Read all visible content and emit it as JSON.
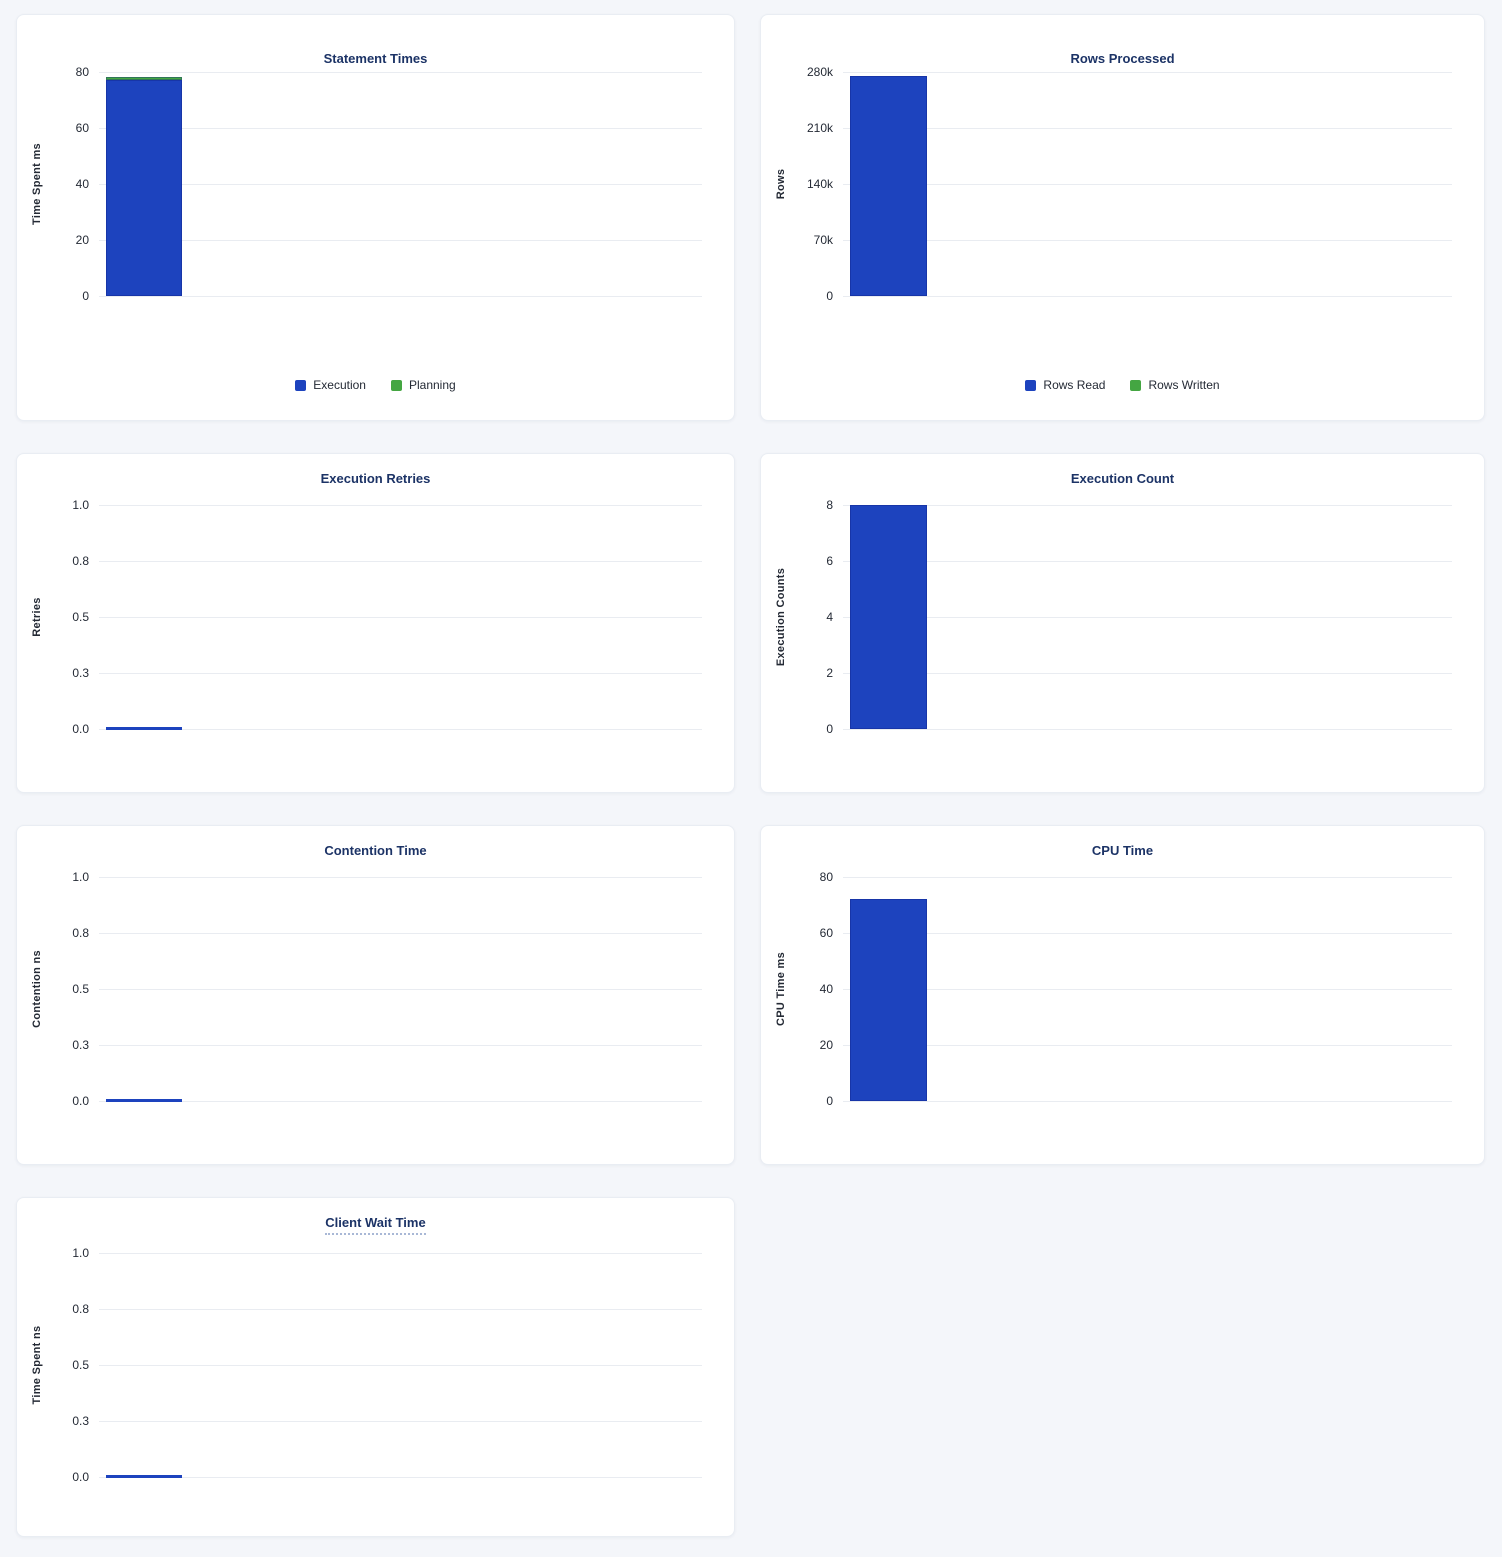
{
  "page": {
    "background_color": "#f4f6fa",
    "panel_background": "#ffffff",
    "panel_border_color": "#e9edf3"
  },
  "palette": {
    "bar_blue": "#1d43be",
    "bar_green": "#44a642",
    "grid_line": "#e9ecf1",
    "title_text": "#1c3366",
    "tick_text": "#242a35"
  },
  "chart_data": [
    {
      "type": "bar",
      "title": "Statement Times",
      "ylabel": "Time Spent ms",
      "ylim": [
        0,
        80
      ],
      "grid": true,
      "stacked": true,
      "legend_position": "bottom",
      "has_tooltip": false,
      "yticks": [
        {
          "value": 80,
          "label": "80"
        },
        {
          "value": 60,
          "label": "60"
        },
        {
          "value": 40,
          "label": "40"
        },
        {
          "value": 20,
          "label": "20"
        },
        {
          "value": 0,
          "label": "0"
        }
      ],
      "series": [
        {
          "name": "Execution",
          "color": "#1d43be",
          "values": [
            77
          ]
        },
        {
          "name": "Planning",
          "color": "#44a642",
          "values": [
            1.2
          ]
        }
      ]
    },
    {
      "type": "bar",
      "title": "Rows Processed",
      "ylabel": "Rows",
      "ylim": [
        0,
        280000
      ],
      "grid": true,
      "stacked": true,
      "legend_position": "bottom",
      "has_tooltip": false,
      "yticks": [
        {
          "value": 280000,
          "label": "280k"
        },
        {
          "value": 210000,
          "label": "210k"
        },
        {
          "value": 140000,
          "label": "140k"
        },
        {
          "value": 70000,
          "label": "70k"
        },
        {
          "value": 0,
          "label": "0"
        }
      ],
      "series": [
        {
          "name": "Rows Read",
          "color": "#1d43be",
          "values": [
            275000
          ]
        },
        {
          "name": "Rows Written",
          "color": "#44a642",
          "values": [
            0
          ]
        }
      ]
    },
    {
      "type": "bar",
      "title": "Execution Retries",
      "ylabel": "Retries",
      "ylim": [
        0,
        1
      ],
      "grid": true,
      "stacked": false,
      "legend_position": "none",
      "has_tooltip": false,
      "yticks": [
        {
          "value": 1,
          "label": "1.0"
        },
        {
          "value": 0.75,
          "label": "0.8"
        },
        {
          "value": 0.5,
          "label": "0.5"
        },
        {
          "value": 0.25,
          "label": "0.3"
        },
        {
          "value": 0,
          "label": "0.0"
        }
      ],
      "series": [
        {
          "name": "Retries",
          "color": "#1d43be",
          "values": [
            0
          ]
        }
      ]
    },
    {
      "type": "bar",
      "title": "Execution Count",
      "ylabel": "Execution Counts",
      "ylim": [
        0,
        8
      ],
      "grid": true,
      "stacked": false,
      "legend_position": "none",
      "has_tooltip": false,
      "yticks": [
        {
          "value": 8,
          "label": "8"
        },
        {
          "value": 6,
          "label": "6"
        },
        {
          "value": 4,
          "label": "4"
        },
        {
          "value": 2,
          "label": "2"
        },
        {
          "value": 0,
          "label": "0"
        }
      ],
      "series": [
        {
          "name": "Execution Count",
          "color": "#1d43be",
          "values": [
            8
          ]
        }
      ]
    },
    {
      "type": "bar",
      "title": "Contention Time",
      "ylabel": "Contention ns",
      "ylim": [
        0,
        1
      ],
      "grid": true,
      "stacked": false,
      "legend_position": "none",
      "has_tooltip": false,
      "yticks": [
        {
          "value": 1,
          "label": "1.0"
        },
        {
          "value": 0.75,
          "label": "0.8"
        },
        {
          "value": 0.5,
          "label": "0.5"
        },
        {
          "value": 0.25,
          "label": "0.3"
        },
        {
          "value": 0,
          "label": "0.0"
        }
      ],
      "series": [
        {
          "name": "Contention",
          "color": "#1d43be",
          "values": [
            0
          ]
        }
      ]
    },
    {
      "type": "bar",
      "title": "CPU Time",
      "ylabel": "CPU Time ms",
      "ylim": [
        0,
        80
      ],
      "grid": true,
      "stacked": false,
      "legend_position": "none",
      "has_tooltip": false,
      "yticks": [
        {
          "value": 80,
          "label": "80"
        },
        {
          "value": 60,
          "label": "60"
        },
        {
          "value": 40,
          "label": "40"
        },
        {
          "value": 20,
          "label": "20"
        },
        {
          "value": 0,
          "label": "0"
        }
      ],
      "series": [
        {
          "name": "CPU Time",
          "color": "#1d43be",
          "values": [
            72
          ]
        }
      ]
    },
    {
      "type": "bar",
      "title": "Client Wait Time",
      "ylabel": "Time Spent ns",
      "ylim": [
        0,
        1
      ],
      "grid": true,
      "stacked": false,
      "legend_position": "none",
      "has_tooltip": true,
      "yticks": [
        {
          "value": 1,
          "label": "1.0"
        },
        {
          "value": 0.75,
          "label": "0.8"
        },
        {
          "value": 0.5,
          "label": "0.5"
        },
        {
          "value": 0.25,
          "label": "0.3"
        },
        {
          "value": 0,
          "label": "0.0"
        }
      ],
      "series": [
        {
          "name": "Client Wait",
          "color": "#1d43be",
          "values": [
            0
          ]
        }
      ]
    }
  ]
}
